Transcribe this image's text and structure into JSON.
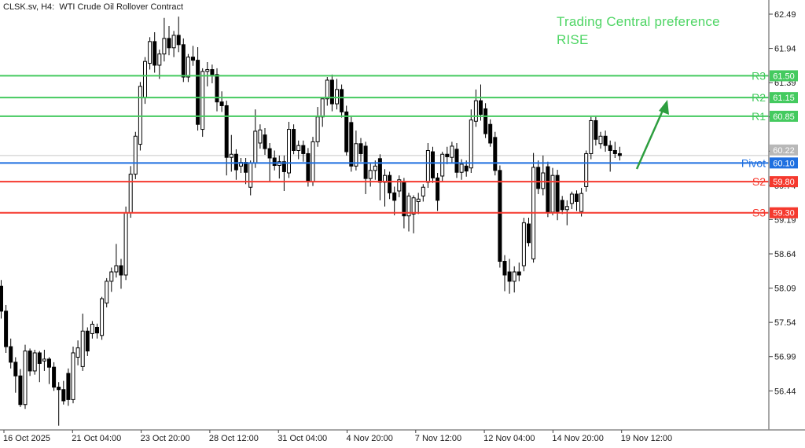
{
  "window": {
    "title": "CLSK.sv, H4:  WTI Crude Oil Rollover Contract"
  },
  "annotation": {
    "line1": "Trading Central preference",
    "line2": "RISE",
    "color": "#4ed564"
  },
  "colors": {
    "background": "#ffffff",
    "axis_line": "#8a8a8a",
    "axis_text": "#1a1a1a",
    "bull_candle": "#ffffff",
    "bear_candle": "#000000",
    "candle_outline": "#000000",
    "current_price_line": "#c6c6c6",
    "current_price_box": "#b8b8b8",
    "resistance": "#44ca5f",
    "pivot": "#1e6fe0",
    "support": "#f5392e",
    "arrow": "#2d9e3f"
  },
  "chart_data": {
    "type": "candlestick",
    "symbol": "CLSK.sv",
    "timeframe": "H4",
    "instrument": "WTI Crude Oil Rollover Contract",
    "y_axis": {
      "max": 62.49,
      "min": 56.44,
      "step": 0.55,
      "ticks": [
        62.49,
        61.94,
        61.39,
        60.84,
        60.29,
        59.74,
        59.19,
        58.64,
        58.09,
        57.54,
        56.99,
        56.44
      ]
    },
    "x_axis": {
      "labels": [
        "16 Oct 2025",
        "21 Oct 04:00",
        "23 Oct 20:00",
        "28 Oct 12:00",
        "31 Oct 04:00",
        "4 Nov 20:00",
        "7 Nov 12:00",
        "12 Nov 04:00",
        "14 Nov 20:00",
        "19 Nov 12:00"
      ]
    },
    "levels": [
      {
        "name": "R3",
        "value": 61.5,
        "label": "61.50",
        "color": "#44ca5f"
      },
      {
        "name": "R2",
        "value": 61.15,
        "label": "61.15",
        "color": "#44ca5f"
      },
      {
        "name": "R1",
        "value": 60.85,
        "label": "60.85",
        "color": "#44ca5f"
      },
      {
        "name": "Pivot",
        "value": 60.1,
        "label": "60.10",
        "color": "#1e6fe0"
      },
      {
        "name": "S2",
        "value": 59.8,
        "label": "59.80",
        "color": "#f5392e"
      },
      {
        "name": "S3",
        "value": 59.3,
        "label": "59.30",
        "color": "#f5392e"
      }
    ],
    "current_price": 60.22,
    "current_price_label": "60.22",
    "trend_arrow": {
      "meaning": "rise",
      "color": "#2d9e3f"
    },
    "candles": [
      [
        58.12,
        58.22,
        57.6,
        57.72
      ],
      [
        57.72,
        57.82,
        57.05,
        57.15
      ],
      [
        57.15,
        57.28,
        56.8,
        56.9
      ],
      [
        56.9,
        56.98,
        56.41,
        56.68
      ],
      [
        56.68,
        56.79,
        56.18,
        56.22
      ],
      [
        56.22,
        57.18,
        56.15,
        57.08
      ],
      [
        57.08,
        57.12,
        56.68,
        56.76
      ],
      [
        56.76,
        57.1,
        56.7,
        57.05
      ],
      [
        57.05,
        57.08,
        56.58,
        56.88
      ],
      [
        56.92,
        57.1,
        56.76,
        56.95
      ],
      [
        56.95,
        56.98,
        56.55,
        56.82
      ],
      [
        56.82,
        56.9,
        56.44,
        56.5
      ],
      [
        56.5,
        56.58,
        55.88,
        56.46
      ],
      [
        56.46,
        56.6,
        56.22,
        56.28
      ],
      [
        56.72,
        56.8,
        56.2,
        56.3
      ],
      [
        56.3,
        57.15,
        56.24,
        57.05
      ],
      [
        56.98,
        57.25,
        56.85,
        57.13
      ],
      [
        56.83,
        57.68,
        56.76,
        57.4
      ],
      [
        57.4,
        57.46,
        57.0,
        57.08
      ],
      [
        57.36,
        57.56,
        57.28,
        57.51
      ],
      [
        57.46,
        57.52,
        57.28,
        57.37
      ],
      [
        57.33,
        57.95,
        57.26,
        57.92
      ],
      [
        57.85,
        58.25,
        57.78,
        58.2
      ],
      [
        58.2,
        58.42,
        58.03,
        58.35
      ],
      [
        58.35,
        58.8,
        58.26,
        58.45
      ],
      [
        58.45,
        58.56,
        58.08,
        58.3
      ],
      [
        58.3,
        59.4,
        58.22,
        59.3
      ],
      [
        59.3,
        60.05,
        59.22,
        59.92
      ],
      [
        59.92,
        60.6,
        59.84,
        60.53
      ],
      [
        60.4,
        61.4,
        60.3,
        61.33
      ],
      [
        61.15,
        61.8,
        61.05,
        61.73
      ],
      [
        61.7,
        62.12,
        61.6,
        62.05
      ],
      [
        62.05,
        62.2,
        61.55,
        61.67
      ],
      [
        61.67,
        61.92,
        61.45,
        61.85
      ],
      [
        61.85,
        62.43,
        61.73,
        62.1
      ],
      [
        62.1,
        62.3,
        61.83,
        61.95
      ],
      [
        61.95,
        62.22,
        61.8,
        62.15
      ],
      [
        62.15,
        62.45,
        61.88,
        62.0
      ],
      [
        62.0,
        62.1,
        61.4,
        61.48
      ],
      [
        61.48,
        61.85,
        61.4,
        61.8
      ],
      [
        61.8,
        61.98,
        61.66,
        61.75
      ],
      [
        61.75,
        61.96,
        60.62,
        60.72
      ],
      [
        60.64,
        61.62,
        60.52,
        61.57
      ],
      [
        61.57,
        61.72,
        61.33,
        61.6
      ],
      [
        61.6,
        61.68,
        61.38,
        61.52
      ],
      [
        61.52,
        61.62,
        60.93,
        61.08
      ],
      [
        61.08,
        61.25,
        60.92,
        61.02
      ],
      [
        61.02,
        61.1,
        59.9,
        60.19
      ],
      [
        60.19,
        60.55,
        59.96,
        60.24
      ],
      [
        60.24,
        60.32,
        59.83,
        59.99
      ],
      [
        60.05,
        60.18,
        59.94,
        60.11
      ],
      [
        60.11,
        60.18,
        59.76,
        59.95
      ],
      [
        59.71,
        60.14,
        59.58,
        60.1
      ],
      [
        60.1,
        60.96,
        60.02,
        60.61
      ],
      [
        60.42,
        60.72,
        60.33,
        60.63
      ],
      [
        60.55,
        60.66,
        60.23,
        60.33
      ],
      [
        60.33,
        60.42,
        59.8,
        60.18
      ],
      [
        60.18,
        60.3,
        59.98,
        60.06
      ],
      [
        60.06,
        60.22,
        59.85,
        60.12
      ],
      [
        60.12,
        60.22,
        59.65,
        59.96
      ],
      [
        59.94,
        60.76,
        59.86,
        60.64
      ],
      [
        60.64,
        60.72,
        60.24,
        60.3
      ],
      [
        60.3,
        60.46,
        60.16,
        60.38
      ],
      [
        60.38,
        60.46,
        60.12,
        60.25
      ],
      [
        60.25,
        60.34,
        59.72,
        59.8
      ],
      [
        59.8,
        60.52,
        59.73,
        60.44
      ],
      [
        60.44,
        61.0,
        60.36,
        60.84
      ],
      [
        60.84,
        61.12,
        60.68,
        61.13
      ],
      [
        61.13,
        61.48,
        61.02,
        61.43
      ],
      [
        61.43,
        61.52,
        60.93,
        61.05
      ],
      [
        61.05,
        61.45,
        60.96,
        61.28
      ],
      [
        61.28,
        61.36,
        60.83,
        60.92
      ],
      [
        60.92,
        61.02,
        60.22,
        60.28
      ],
      [
        60.75,
        60.84,
        59.96,
        60.05
      ],
      [
        60.05,
        60.62,
        59.98,
        60.41
      ],
      [
        60.41,
        60.5,
        60.12,
        60.25
      ],
      [
        60.37,
        60.44,
        59.6,
        59.85
      ],
      [
        59.85,
        60.1,
        59.72,
        59.98
      ],
      [
        59.98,
        60.14,
        59.83,
        60.05
      ],
      [
        60.17,
        60.24,
        59.5,
        59.79
      ],
      [
        59.79,
        60.0,
        59.4,
        59.9
      ],
      [
        59.9,
        59.96,
        59.52,
        59.62
      ],
      [
        59.62,
        59.72,
        59.26,
        59.5
      ],
      [
        59.65,
        59.9,
        59.55,
        59.83
      ],
      [
        59.79,
        59.86,
        59.05,
        59.25
      ],
      [
        59.25,
        59.62,
        59.0,
        59.57
      ],
      [
        59.28,
        59.58,
        58.97,
        59.54
      ],
      [
        59.48,
        59.62,
        59.28,
        59.52
      ],
      [
        59.57,
        59.76,
        59.48,
        59.71
      ],
      [
        59.79,
        60.42,
        59.7,
        60.3
      ],
      [
        60.28,
        60.36,
        59.78,
        59.86
      ],
      [
        59.86,
        59.94,
        59.33,
        59.5
      ],
      [
        59.89,
        60.28,
        59.8,
        60.24
      ],
      [
        60.24,
        60.36,
        60.08,
        60.2
      ],
      [
        60.19,
        60.44,
        60.1,
        60.37
      ],
      [
        60.32,
        60.42,
        59.86,
        59.95
      ],
      [
        59.95,
        60.16,
        59.83,
        60.08
      ],
      [
        60.05,
        60.14,
        59.88,
        59.97
      ],
      [
        60.02,
        60.96,
        59.94,
        60.79
      ],
      [
        60.77,
        61.28,
        60.68,
        61.1
      ],
      [
        61.1,
        61.36,
        60.78,
        60.88
      ],
      [
        60.97,
        61.06,
        60.5,
        60.57
      ],
      [
        60.72,
        60.8,
        60.36,
        60.42
      ],
      [
        60.51,
        60.6,
        59.9,
        59.98
      ],
      [
        59.98,
        60.06,
        58.42,
        58.52
      ],
      [
        58.52,
        58.62,
        58.04,
        58.3
      ],
      [
        58.35,
        58.56,
        58.0,
        58.2
      ],
      [
        58.2,
        58.44,
        58.02,
        58.35
      ],
      [
        58.35,
        58.5,
        58.2,
        58.3
      ],
      [
        58.45,
        59.22,
        58.36,
        59.14
      ],
      [
        59.12,
        59.22,
        58.76,
        58.82
      ],
      [
        58.56,
        60.26,
        58.5,
        60.03
      ],
      [
        60.03,
        60.14,
        59.6,
        59.69
      ],
      [
        59.69,
        60.22,
        59.58,
        59.94
      ],
      [
        60.04,
        60.12,
        59.23,
        59.31
      ],
      [
        59.31,
        60.02,
        59.26,
        59.9
      ],
      [
        59.9,
        59.99,
        59.18,
        59.32
      ],
      [
        59.5,
        59.57,
        59.28,
        59.35
      ],
      [
        59.35,
        59.5,
        59.1,
        59.4
      ],
      [
        59.45,
        59.64,
        59.36,
        59.6
      ],
      [
        59.6,
        59.66,
        59.33,
        59.48
      ],
      [
        59.32,
        59.7,
        59.24,
        59.61
      ],
      [
        59.72,
        60.3,
        59.64,
        60.25
      ],
      [
        60.25,
        60.84,
        60.16,
        60.78
      ],
      [
        60.78,
        60.86,
        60.38,
        60.48
      ],
      [
        60.41,
        60.6,
        60.33,
        60.53
      ],
      [
        60.53,
        60.62,
        60.28,
        60.38
      ],
      [
        60.38,
        60.46,
        59.96,
        60.3
      ],
      [
        60.3,
        60.44,
        60.18,
        60.25
      ],
      [
        60.25,
        60.36,
        60.14,
        60.22
      ]
    ]
  }
}
